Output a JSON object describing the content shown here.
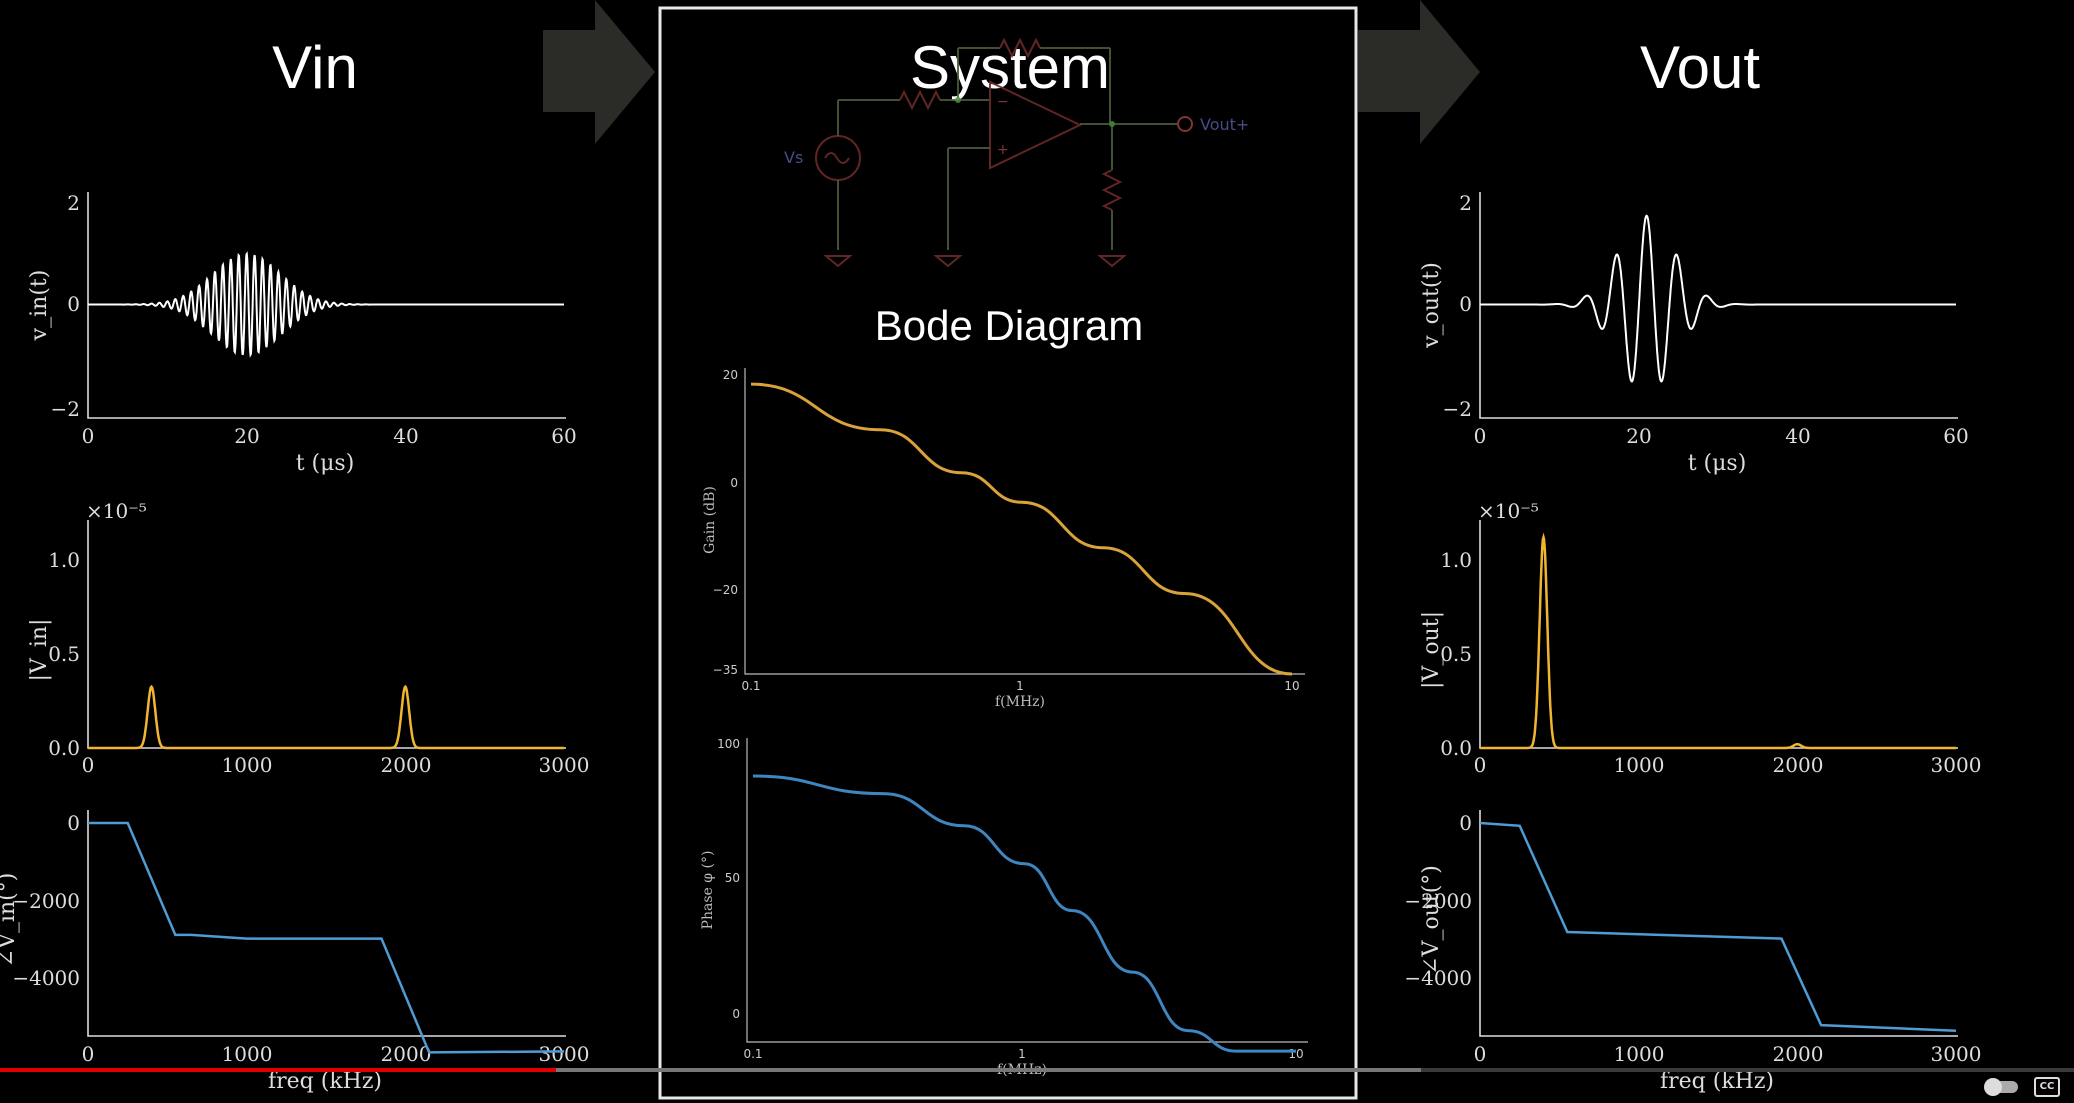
{
  "header": {
    "vin_title": "Vin",
    "system_title": "System",
    "vout_title": "Vout"
  },
  "circuit": {
    "source_label": "Vs",
    "output_label": "Vout+",
    "minus_sign": "−",
    "plus_sign": "+"
  },
  "bode_title": "Bode Diagram",
  "colors": {
    "magnitude": "#f2b530",
    "phase": "#4f9bd4",
    "time_signal": "#ffffff",
    "gain_curve": "#d9a23a",
    "phase_curve": "#3f86c1",
    "progress": "#e00000",
    "frame": "#e8e8e8"
  },
  "vin_plots": {
    "time": {
      "ylabel": "v_in(t)",
      "xlabel": "t (μs)",
      "xticks": [
        "0",
        "20",
        "40",
        "60"
      ],
      "yticks": [
        "2",
        "0",
        "−2"
      ]
    },
    "mag": {
      "ylabel": "|V_in|",
      "exponent": "×10⁻⁵",
      "xticks": [
        "0",
        "1000",
        "2000",
        "3000"
      ],
      "yticks": [
        "1.0",
        "0.5",
        "0.0"
      ]
    },
    "phase": {
      "ylabel": "∠V_in(°)",
      "xlabel": "freq (kHz)",
      "xticks": [
        "0",
        "1000",
        "2000",
        "3000"
      ],
      "yticks": [
        "0",
        "−2000",
        "−4000"
      ]
    }
  },
  "vout_plots": {
    "time": {
      "ylabel": "v_out(t)",
      "xlabel": "t (μs)",
      "xticks": [
        "0",
        "20",
        "40",
        "60"
      ],
      "yticks": [
        "2",
        "0",
        "−2"
      ]
    },
    "mag": {
      "ylabel": "|V_out|",
      "exponent": "×10⁻⁵",
      "xticks": [
        "0",
        "1000",
        "2000",
        "3000"
      ],
      "yticks": [
        "1.0",
        "0.5",
        "0.0"
      ]
    },
    "phase": {
      "ylabel": "∠V_out(°)",
      "xlabel": "freq (kHz)",
      "xticks": [
        "0",
        "1000",
        "2000",
        "3000"
      ],
      "yticks": [
        "0",
        "−2000",
        "−4000"
      ]
    }
  },
  "bode": {
    "gain": {
      "ylabel": "Gain (dB)",
      "xlabel": "f(MHz)",
      "xticks": [
        "0.1",
        "1",
        "10"
      ],
      "yticks": [
        "20",
        "0",
        "−20",
        "−35"
      ]
    },
    "phase": {
      "ylabel": "Phase φ (°)",
      "xlabel": "f(MHz)",
      "xticks": [
        "0.1",
        "1",
        "10"
      ],
      "yticks": [
        "100",
        "50",
        "0"
      ]
    }
  },
  "chart_data": [
    {
      "type": "line",
      "x_range": [
        0,
        60
      ],
      "ylim": [
        -2,
        2
      ],
      "series": [
        {
          "envelope_center": 20,
          "envelope_width": 6,
          "peak": 1.0,
          "cycles_per_us": 1.0
        }
      ]
    },
    {
      "type": "line",
      "x_range": [
        0,
        3000
      ],
      "ylim": [
        0,
        1.2
      ],
      "series": [
        {
          "peaks": [
            {
              "x": 400,
              "y": 0.32
            },
            {
              "x": 2000,
              "y": 0.32
            }
          ]
        }
      ]
    },
    {
      "type": "line",
      "x_range": [
        0,
        3000
      ],
      "ylim": [
        -5000,
        0
      ],
      "series": [
        {
          "x": [
            0,
            250,
            550,
            650,
            1000,
            1850,
            2150,
            3000
          ],
          "y": [
            0,
            0,
            -2380,
            -2380,
            -2460,
            -2460,
            -4880,
            -4860
          ]
        }
      ]
    },
    {
      "type": "line",
      "x_range": [
        0,
        60
      ],
      "ylim": [
        -2,
        2
      ],
      "series": [
        {
          "envelope_center": 21,
          "envelope_width": 5,
          "peak": 1.75,
          "cycles_per_us": 0.26
        }
      ]
    },
    {
      "type": "line",
      "x_range": [
        0,
        3000
      ],
      "ylim": [
        0,
        1.2
      ],
      "series": [
        {
          "peaks": [
            {
              "x": 400,
              "y": 1.1
            },
            {
              "x": 2000,
              "y": 0.02
            }
          ]
        }
      ]
    },
    {
      "type": "line",
      "x_range": [
        0,
        3000
      ],
      "ylim": [
        -5000,
        0
      ],
      "series": [
        {
          "x": [
            0,
            250,
            550,
            1900,
            2150,
            3000
          ],
          "y": [
            0,
            -60,
            -2320,
            -2460,
            -4300,
            -4420
          ]
        }
      ]
    },
    {
      "type": "line",
      "x_scale": "log",
      "x_range": [
        0.1,
        10
      ],
      "ylim": [
        -35,
        22
      ],
      "series": [
        {
          "x": [
            0.1,
            0.3,
            0.6,
            1,
            2,
            4,
            10
          ],
          "y": [
            19,
            10.5,
            2.5,
            -3,
            -11.5,
            -20,
            -35
          ]
        }
      ]
    },
    {
      "type": "line",
      "x_scale": "log",
      "x_range": [
        0.1,
        10
      ],
      "ylim": [
        -5,
        103
      ],
      "series": [
        {
          "x": [
            0.1,
            0.3,
            0.6,
            1,
            1.5,
            2.5,
            4,
            6,
            10
          ],
          "y": [
            90,
            84,
            73,
            60,
            44,
            23,
            3,
            -4,
            -4
          ]
        }
      ]
    }
  ],
  "progress": {
    "played_fraction": 0.268,
    "buffered_fraction": 0.685
  },
  "controls": {
    "cc_label": "CC"
  }
}
